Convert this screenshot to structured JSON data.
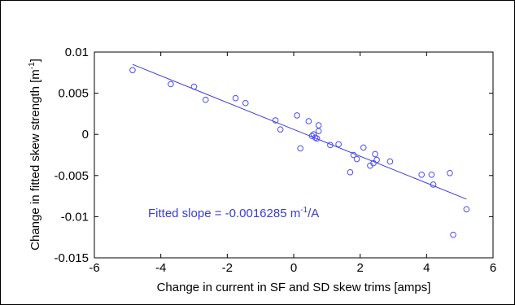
{
  "chart_data": {
    "type": "scatter",
    "xlabel": "Change in current in SF and SD skew trims [amps]",
    "ylabel": "Change in fitted skew strength [m",
    "ylabel_sup": "-1",
    "ylabel_close": "]",
    "xlim": [
      -6,
      6
    ],
    "ylim": [
      -0.015,
      0.01
    ],
    "x_ticks": [
      -6,
      -4,
      -2,
      0,
      2,
      4,
      6
    ],
    "x_tick_labels": [
      "-6",
      "-4",
      "-2",
      "0",
      "2",
      "4",
      "6"
    ],
    "y_ticks": [
      -0.015,
      -0.01,
      -0.005,
      0,
      0.005,
      0.01
    ],
    "y_tick_labels": [
      "-0.015",
      "-0.01",
      "-0.005",
      "0",
      "0.005",
      "0.01"
    ],
    "grid": false,
    "marker_color": "#4a4aff",
    "line_color": "#3b3bd6",
    "points": {
      "x": [
        -4.85,
        -3.7,
        -3.0,
        -2.65,
        -1.75,
        -1.45,
        -0.55,
        -0.4,
        0.1,
        0.2,
        0.45,
        0.55,
        0.6,
        0.65,
        0.7,
        0.75,
        0.75,
        1.1,
        1.35,
        1.7,
        1.8,
        1.9,
        2.1,
        2.3,
        2.4,
        2.45,
        2.5,
        2.9,
        3.85,
        4.15,
        4.2,
        4.7,
        4.8,
        5.2
      ],
      "y": [
        0.0078,
        0.0061,
        0.0058,
        0.0042,
        0.0044,
        0.0038,
        0.0017,
        0.0006,
        0.0023,
        -0.0017,
        0.0016,
        -0.0002,
        0.0,
        -0.0004,
        -0.0005,
        0.0011,
        0.0004,
        -0.0013,
        -0.0012,
        -0.0046,
        -0.0025,
        -0.003,
        -0.0016,
        -0.0038,
        -0.0035,
        -0.0024,
        -0.0031,
        -0.0033,
        -0.0049,
        -0.0049,
        -0.0061,
        -0.0047,
        -0.0122,
        -0.0091
      ]
    },
    "fit": {
      "slope": -0.0016285,
      "x_range": [
        -4.85,
        5.2
      ],
      "intercept": 0.0006
    },
    "annotation": {
      "text": "Fitted slope = -0.0016285 m",
      "sup": "-1",
      "suffix": "/A",
      "color": "#3b3bd6"
    }
  }
}
